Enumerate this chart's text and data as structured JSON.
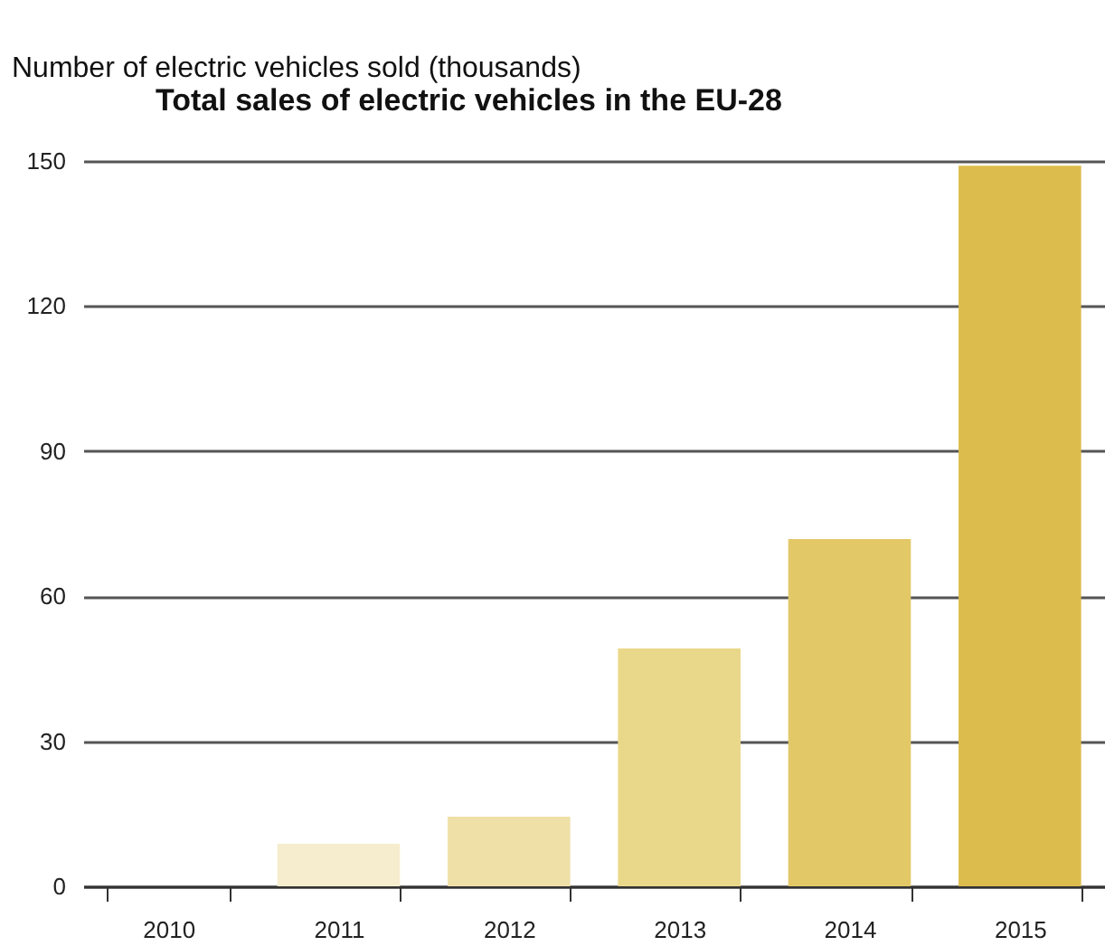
{
  "chart_data": {
    "type": "bar",
    "title": "Total sales of electric vehicles in the EU-28",
    "ylabel": "Number of electric vehicles sold (thousands)",
    "categories": [
      "2010",
      "2011",
      "2012",
      "2013",
      "2014",
      "2015"
    ],
    "values": [
      0,
      8.8,
      14.4,
      49.2,
      71.8,
      149
    ],
    "colors": [
      "#f7f0d8",
      "#f5edce",
      "#efe0a8",
      "#ead88a",
      "#e3c868",
      "#dcbc4c"
    ],
    "ylim": [
      0,
      150
    ],
    "yticks": [
      0,
      30,
      60,
      90,
      120,
      150
    ],
    "grid": "y",
    "legend": false
  }
}
